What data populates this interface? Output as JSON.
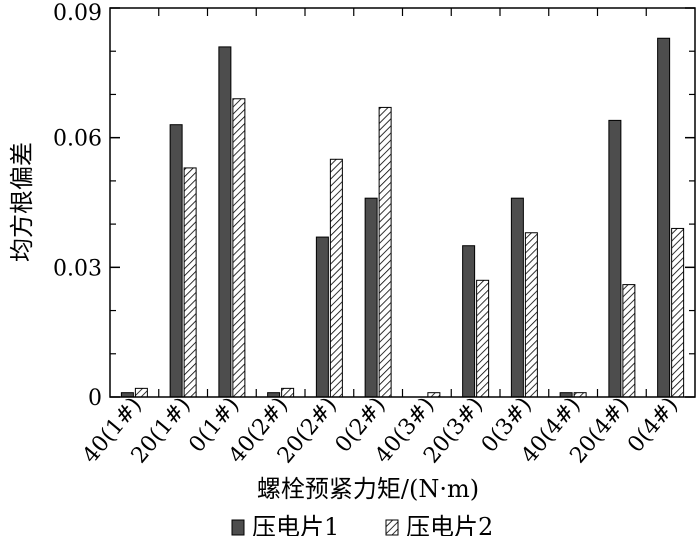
{
  "chart_data": {
    "type": "bar",
    "title": "",
    "xlabel": "螺栓预紧力矩/(N·m)",
    "ylabel": "均方根偏差",
    "ylim": [
      0,
      0.09
    ],
    "yticks": [
      "0",
      "0.03",
      "0.06",
      "0.09"
    ],
    "ytick_values": [
      0,
      0.03,
      0.06,
      0.09
    ],
    "grid": false,
    "legend_position": "bottom",
    "categories": [
      "40(1#)",
      "20(1#)",
      "0(1#)",
      "40(2#)",
      "20(2#)",
      "0(2#)",
      "40(3#)",
      "20(3#)",
      "0(3#)",
      "40(4#)",
      "20(4#)",
      "0(4#)"
    ],
    "series": [
      {
        "name": "压电片1",
        "color": "#4d4d4d",
        "style": "solid",
        "values": [
          0.001,
          0.063,
          0.081,
          0.001,
          0.037,
          0.046,
          0.0,
          0.035,
          0.046,
          0.001,
          0.064,
          0.083
        ]
      },
      {
        "name": "压电片2",
        "color": "#ffffff",
        "style": "hatched",
        "values": [
          0.002,
          0.053,
          0.069,
          0.002,
          0.055,
          0.067,
          0.001,
          0.027,
          0.038,
          0.001,
          0.026,
          0.039
        ]
      }
    ]
  }
}
